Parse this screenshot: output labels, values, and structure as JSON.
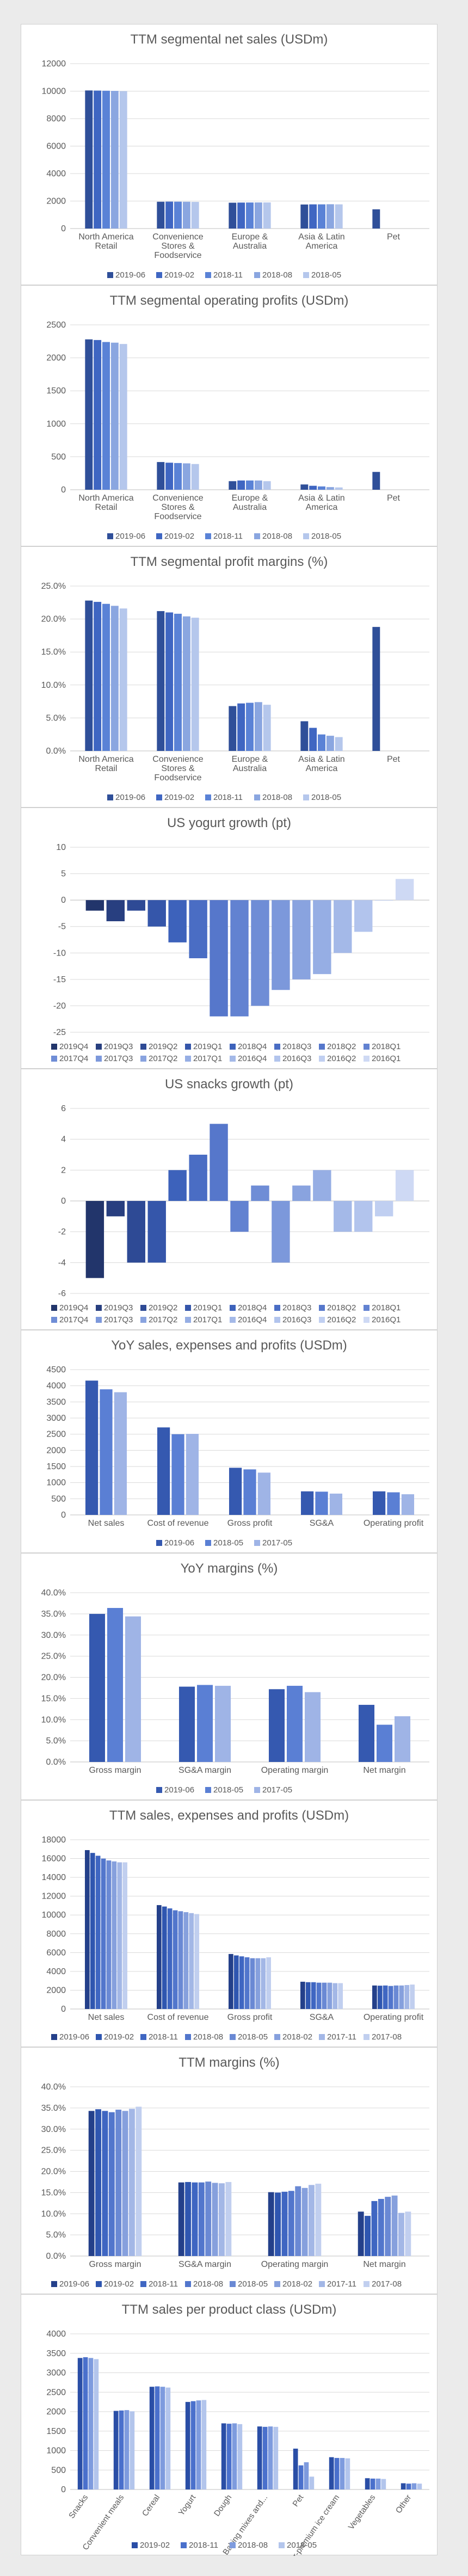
{
  "chart_data": [
    {
      "type": "bar",
      "title": "TTM segmental net sales (USDm)",
      "categories": [
        "North America\nRetail",
        "Convenience\nStores &\nFoodservice",
        "Europe &\nAustralia",
        "Asia & Latin\nAmerica",
        "Pet"
      ],
      "ylim": [
        0,
        12000
      ],
      "yticks": [
        0,
        2000,
        4000,
        6000,
        8000,
        10000,
        12000
      ],
      "tick_format": "plain",
      "series": [
        {
          "name": "2019-06",
          "values": [
            10050,
            1950,
            1880,
            1750,
            1400
          ]
        },
        {
          "name": "2019-02",
          "values": [
            10040,
            1960,
            1890,
            1760,
            null
          ]
        },
        {
          "name": "2018-11",
          "values": [
            10030,
            1955,
            1895,
            1760,
            null
          ]
        },
        {
          "name": "2018-08",
          "values": [
            10020,
            1950,
            1900,
            1770,
            null
          ]
        },
        {
          "name": "2018-05",
          "values": [
            10000,
            1940,
            1900,
            1760,
            null
          ]
        }
      ],
      "legend": "bottom",
      "grid": true
    },
    {
      "type": "bar",
      "title": "TTM segmental operating profits (USDm)",
      "categories": [
        "North America\nRetail",
        "Convenience\nStores &\nFoodservice",
        "Europe &\nAustralia",
        "Asia & Latin\nAmerica",
        "Pet"
      ],
      "ylim": [
        0,
        2500
      ],
      "yticks": [
        0,
        500,
        1000,
        1500,
        2000,
        2500
      ],
      "tick_format": "plain",
      "series": [
        {
          "name": "2019-06",
          "values": [
            2280,
            420,
            130,
            80,
            270
          ]
        },
        {
          "name": "2019-02",
          "values": [
            2270,
            410,
            140,
            60,
            null
          ]
        },
        {
          "name": "2018-11",
          "values": [
            2240,
            405,
            140,
            50,
            null
          ]
        },
        {
          "name": "2018-08",
          "values": [
            2230,
            400,
            140,
            40,
            null
          ]
        },
        {
          "name": "2018-05",
          "values": [
            2210,
            390,
            130,
            35,
            null
          ]
        }
      ],
      "legend": "bottom",
      "grid": true
    },
    {
      "type": "bar",
      "title": "TTM segmental profit margins (%)",
      "categories": [
        "North America\nRetail",
        "Convenience\nStores &\nFoodservice",
        "Europe &\nAustralia",
        "Asia & Latin\nAmerica",
        "Pet"
      ],
      "ylim": [
        0,
        25
      ],
      "yticks": [
        0,
        5,
        10,
        15,
        20,
        25
      ],
      "tick_format": "pct1",
      "series": [
        {
          "name": "2019-06",
          "values": [
            22.8,
            21.2,
            6.8,
            4.5,
            18.8
          ]
        },
        {
          "name": "2019-02",
          "values": [
            22.6,
            21.0,
            7.2,
            3.5,
            null
          ]
        },
        {
          "name": "2018-11",
          "values": [
            22.3,
            20.8,
            7.3,
            2.5,
            null
          ]
        },
        {
          "name": "2018-08",
          "values": [
            22.0,
            20.4,
            7.4,
            2.3,
            null
          ]
        },
        {
          "name": "2018-05",
          "values": [
            21.6,
            20.2,
            7.0,
            2.1,
            null
          ]
        }
      ],
      "legend": "bottom",
      "grid": true
    },
    {
      "type": "bar",
      "title": "US yogurt growth (pt)",
      "categories": [
        ""
      ],
      "ylim": [
        -25,
        10
      ],
      "yticks": [
        -25,
        -20,
        -15,
        -10,
        -5,
        0,
        5,
        10
      ],
      "tick_format": "plain",
      "series": [
        {
          "name": "2019Q4",
          "values": [
            -2
          ]
        },
        {
          "name": "2019Q3",
          "values": [
            -4
          ]
        },
        {
          "name": "2019Q2",
          "values": [
            -2
          ]
        },
        {
          "name": "2019Q1",
          "values": [
            -5
          ]
        },
        {
          "name": "2018Q4",
          "values": [
            -8
          ]
        },
        {
          "name": "2018Q3",
          "values": [
            -11
          ]
        },
        {
          "name": "2018Q2",
          "values": [
            -22
          ]
        },
        {
          "name": "2018Q1",
          "values": [
            -22
          ]
        },
        {
          "name": "2017Q4",
          "values": [
            -20
          ]
        },
        {
          "name": "2017Q3",
          "values": [
            -17
          ]
        },
        {
          "name": "2017Q2",
          "values": [
            -15
          ]
        },
        {
          "name": "2017Q1",
          "values": [
            -14
          ]
        },
        {
          "name": "2016Q4",
          "values": [
            -10
          ]
        },
        {
          "name": "2016Q3",
          "values": [
            -6
          ]
        },
        {
          "name": "2016Q2",
          "values": [
            0
          ]
        },
        {
          "name": "2016Q1",
          "values": [
            4
          ]
        }
      ],
      "legend": "bottom",
      "grid": true
    },
    {
      "type": "bar",
      "title": "US snacks growth (pt)",
      "categories": [
        ""
      ],
      "ylim": [
        -6,
        6
      ],
      "yticks": [
        -6,
        -4,
        -2,
        0,
        2,
        4,
        6
      ],
      "tick_format": "plain",
      "series": [
        {
          "name": "2019Q4",
          "values": [
            -5
          ]
        },
        {
          "name": "2019Q3",
          "values": [
            -1
          ]
        },
        {
          "name": "2019Q2",
          "values": [
            -4
          ]
        },
        {
          "name": "2019Q1",
          "values": [
            -4
          ]
        },
        {
          "name": "2018Q4",
          "values": [
            2
          ]
        },
        {
          "name": "2018Q3",
          "values": [
            3
          ]
        },
        {
          "name": "2018Q2",
          "values": [
            5
          ]
        },
        {
          "name": "2018Q1",
          "values": [
            -2
          ]
        },
        {
          "name": "2017Q4",
          "values": [
            1
          ]
        },
        {
          "name": "2017Q3",
          "values": [
            -4
          ]
        },
        {
          "name": "2017Q2",
          "values": [
            1
          ]
        },
        {
          "name": "2017Q1",
          "values": [
            2
          ]
        },
        {
          "name": "2016Q4",
          "values": [
            -2
          ]
        },
        {
          "name": "2016Q3",
          "values": [
            -2
          ]
        },
        {
          "name": "2016Q2",
          "values": [
            -1
          ]
        },
        {
          "name": "2016Q1",
          "values": [
            2
          ]
        }
      ],
      "legend": "bottom",
      "grid": true
    },
    {
      "type": "bar",
      "title": "YoY sales, expenses and profits (USDm)",
      "categories": [
        "Net sales",
        "Cost of revenue",
        "Gross profit",
        "SG&A",
        "Operating profit"
      ],
      "ylim": [
        0,
        4500
      ],
      "yticks": [
        0,
        500,
        1000,
        1500,
        2000,
        2500,
        3000,
        3500,
        4000,
        4500
      ],
      "tick_format": "plain",
      "series": [
        {
          "name": "2019-06",
          "values": [
            4160,
            2710,
            1460,
            730,
            730
          ]
        },
        {
          "name": "2018-05",
          "values": [
            3890,
            2500,
            1410,
            720,
            700
          ]
        },
        {
          "name": "2017-05",
          "values": [
            3800,
            2510,
            1310,
            660,
            640
          ]
        }
      ],
      "legend": "bottom",
      "grid": true
    },
    {
      "type": "bar",
      "title": "YoY margins (%)",
      "categories": [
        "Gross margin",
        "SG&A margin",
        "Operating margin",
        "Net margin"
      ],
      "ylim": [
        0,
        40
      ],
      "yticks": [
        0,
        5,
        10,
        15,
        20,
        25,
        30,
        35,
        40
      ],
      "tick_format": "pct1",
      "series": [
        {
          "name": "2019-06",
          "values": [
            35.0,
            17.8,
            17.2,
            13.5
          ]
        },
        {
          "name": "2018-05",
          "values": [
            36.4,
            18.2,
            18.0,
            8.8
          ]
        },
        {
          "name": "2017-05",
          "values": [
            34.4,
            18.0,
            16.5,
            10.8
          ]
        }
      ],
      "legend": "bottom",
      "grid": true
    },
    {
      "type": "bar",
      "title": "TTM sales, expenses and profits (USDm)",
      "categories": [
        "Net sales",
        "Cost of revenue",
        "Gross profit",
        "SG&A",
        "Operating profit"
      ],
      "ylim": [
        0,
        18000
      ],
      "yticks": [
        0,
        2000,
        4000,
        6000,
        8000,
        10000,
        12000,
        14000,
        16000,
        18000
      ],
      "tick_format": "plain",
      "series": [
        {
          "name": "2019-06",
          "values": [
            16900,
            11050,
            5850,
            2900,
            2500
          ]
        },
        {
          "name": "2019-02",
          "values": [
            16600,
            10900,
            5700,
            2850,
            2480
          ]
        },
        {
          "name": "2018-11",
          "values": [
            16300,
            10700,
            5600,
            2850,
            2500
          ]
        },
        {
          "name": "2018-08",
          "values": [
            16000,
            10500,
            5500,
            2800,
            2450
          ]
        },
        {
          "name": "2018-05",
          "values": [
            15800,
            10400,
            5400,
            2800,
            2500
          ]
        },
        {
          "name": "2018-02",
          "values": [
            15700,
            10300,
            5400,
            2800,
            2500
          ]
        },
        {
          "name": "2017-11",
          "values": [
            15600,
            10200,
            5400,
            2750,
            2550
          ]
        },
        {
          "name": "2017-08",
          "values": [
            15600,
            10100,
            5500,
            2750,
            2600
          ]
        }
      ],
      "legend": "bottom",
      "grid": true
    },
    {
      "type": "bar",
      "title": "TTM margins (%)",
      "categories": [
        "Gross margin",
        "SG&A margin",
        "Operating margin",
        "Net margin"
      ],
      "ylim": [
        0,
        40
      ],
      "yticks": [
        0,
        5,
        10,
        15,
        20,
        25,
        30,
        35,
        40
      ],
      "tick_format": "pct1",
      "series": [
        {
          "name": "2019-06",
          "values": [
            34.3,
            17.4,
            15.1,
            10.5
          ]
        },
        {
          "name": "2019-02",
          "values": [
            34.7,
            17.5,
            15.0,
            9.5
          ]
        },
        {
          "name": "2018-11",
          "values": [
            34.3,
            17.4,
            15.2,
            13.0
          ]
        },
        {
          "name": "2018-08",
          "values": [
            34.0,
            17.4,
            15.4,
            13.5
          ]
        },
        {
          "name": "2018-05",
          "values": [
            34.6,
            17.6,
            16.5,
            14.0
          ]
        },
        {
          "name": "2018-02",
          "values": [
            34.3,
            17.3,
            16.1,
            14.3
          ]
        },
        {
          "name": "2017-11",
          "values": [
            34.8,
            17.2,
            16.8,
            10.2
          ]
        },
        {
          "name": "2017-08",
          "values": [
            35.3,
            17.5,
            17.1,
            10.5
          ]
        }
      ],
      "legend": "bottom",
      "grid": true
    },
    {
      "type": "bar",
      "title": "TTM sales per product class (USDm)",
      "categories": [
        "Snacks",
        "Convenient meals",
        "Cereal",
        "Yogurt",
        "Dough",
        "Baking mixes and...",
        "Pet",
        "Super-premium ice cream",
        "Vegetables",
        "Other"
      ],
      "ylim": [
        0,
        4000
      ],
      "yticks": [
        0,
        500,
        1000,
        1500,
        2000,
        2500,
        3000,
        3500,
        4000
      ],
      "tick_format": "plain",
      "rotated_labels": true,
      "series": [
        {
          "name": "2019-02",
          "values": [
            3380,
            2020,
            2640,
            2250,
            1700,
            1620,
            1050,
            830,
            290,
            160
          ]
        },
        {
          "name": "2018-11",
          "values": [
            3400,
            2030,
            2650,
            2270,
            1690,
            1610,
            620,
            810,
            280,
            150
          ]
        },
        {
          "name": "2018-08",
          "values": [
            3380,
            2040,
            2640,
            2290,
            1700,
            1620,
            700,
            810,
            280,
            160
          ]
        },
        {
          "name": "2018-05",
          "values": [
            3350,
            2010,
            2620,
            2300,
            1680,
            1610,
            330,
            800,
            270,
            150
          ]
        }
      ],
      "legend": "bottom",
      "grid": true
    }
  ]
}
